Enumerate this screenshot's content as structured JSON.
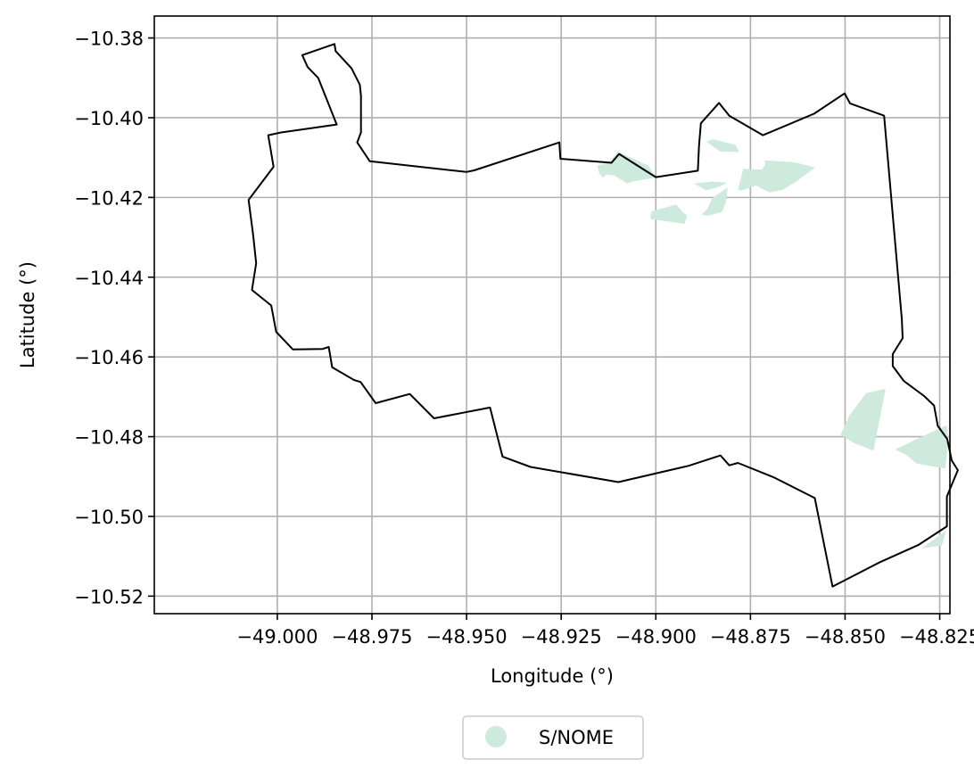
{
  "map": {
    "xlabel": "Longitude (°)",
    "ylabel": "Latitude (°)",
    "xlim": [
      -49.0325,
      -48.8223
    ],
    "ylim": [
      -10.5244,
      -10.3745
    ],
    "grid": true,
    "x_ticks": [
      {
        "value": -49.0,
        "label": "−49.000"
      },
      {
        "value": -48.975,
        "label": "−48.975"
      },
      {
        "value": -48.95,
        "label": "−48.950"
      },
      {
        "value": -48.925,
        "label": "−48.925"
      },
      {
        "value": -48.9,
        "label": "−48.900"
      },
      {
        "value": -48.875,
        "label": "−48.875"
      },
      {
        "value": -48.85,
        "label": "−48.850"
      },
      {
        "value": -48.825,
        "label": "−48.825"
      }
    ],
    "y_ticks": [
      {
        "value": -10.38,
        "label": "−10.38"
      },
      {
        "value": -10.4,
        "label": "−10.40"
      },
      {
        "value": -10.42,
        "label": "−10.42"
      },
      {
        "value": -10.44,
        "label": "−10.44"
      },
      {
        "value": -10.46,
        "label": "−10.46"
      },
      {
        "value": -10.48,
        "label": "−10.48"
      },
      {
        "value": -10.5,
        "label": "−10.50"
      },
      {
        "value": -10.52,
        "label": "−10.52"
      }
    ],
    "boundary": {
      "color": "#000000",
      "coords": [
        [
          -48.9849,
          -10.3815
        ],
        [
          -48.9846,
          -10.3833
        ],
        [
          -48.9804,
          -10.3876
        ],
        [
          -48.9782,
          -10.3917
        ],
        [
          -48.9779,
          -10.3945
        ],
        [
          -48.9779,
          -10.4037
        ],
        [
          -48.9789,
          -10.4062
        ],
        [
          -48.9756,
          -10.4109
        ],
        [
          -48.9501,
          -10.4136
        ],
        [
          -48.948,
          -10.4132
        ],
        [
          -48.9255,
          -10.4062
        ],
        [
          -48.9252,
          -10.4103
        ],
        [
          -48.9117,
          -10.4113
        ],
        [
          -48.9097,
          -10.4091
        ],
        [
          -48.9,
          -10.4149
        ],
        [
          -48.8889,
          -10.4133
        ],
        [
          -48.8886,
          -10.407
        ],
        [
          -48.8881,
          -10.4014
        ],
        [
          -48.8833,
          -10.3963
        ],
        [
          -48.8806,
          -10.3995
        ],
        [
          -48.8717,
          -10.4044
        ],
        [
          -48.8582,
          -10.399
        ],
        [
          -48.8501,
          -10.3939
        ],
        [
          -48.8487,
          -10.3964
        ],
        [
          -48.8397,
          -10.3995
        ],
        [
          -48.835,
          -10.4506
        ],
        [
          -48.8348,
          -10.4553
        ],
        [
          -48.8374,
          -10.4593
        ],
        [
          -48.8374,
          -10.4623
        ],
        [
          -48.8345,
          -10.466
        ],
        [
          -48.8291,
          -10.4698
        ],
        [
          -48.8265,
          -10.4722
        ],
        [
          -48.8255,
          -10.4773
        ],
        [
          -48.823,
          -10.4806
        ],
        [
          -48.8218,
          -10.486
        ],
        [
          -48.8202,
          -10.4884
        ],
        [
          -48.8231,
          -10.495
        ],
        [
          -48.8231,
          -10.5025
        ],
        [
          -48.8307,
          -10.5072
        ],
        [
          -48.8408,
          -10.5115
        ],
        [
          -48.8533,
          -10.5176
        ],
        [
          -48.858,
          -10.4954
        ],
        [
          -48.8686,
          -10.4903
        ],
        [
          -48.8783,
          -10.4866
        ],
        [
          -48.8806,
          -10.4872
        ],
        [
          -48.8829,
          -10.4847
        ],
        [
          -48.8913,
          -10.4873
        ],
        [
          -48.9099,
          -10.4914
        ],
        [
          -48.9331,
          -10.4876
        ],
        [
          -48.9405,
          -10.485
        ],
        [
          -48.9438,
          -10.4727
        ],
        [
          -48.9586,
          -10.4754
        ],
        [
          -48.965,
          -10.4693
        ],
        [
          -48.974,
          -10.4716
        ],
        [
          -48.978,
          -10.4663
        ],
        [
          -48.9797,
          -10.4658
        ],
        [
          -48.9855,
          -10.4626
        ],
        [
          -48.9864,
          -10.4575
        ],
        [
          -48.988,
          -10.458
        ],
        [
          -48.9959,
          -10.4581
        ],
        [
          -49.0003,
          -10.4537
        ],
        [
          -49.0016,
          -10.4471
        ],
        [
          -49.0067,
          -10.4432
        ],
        [
          -49.0056,
          -10.4365
        ],
        [
          -49.0064,
          -10.4294
        ],
        [
          -49.0076,
          -10.4206
        ],
        [
          -49.001,
          -10.4123
        ],
        [
          -49.0024,
          -10.4044
        ],
        [
          -48.999,
          -10.4037
        ],
        [
          -48.9843,
          -10.4017
        ],
        [
          -48.9892,
          -10.39
        ],
        [
          -48.992,
          -10.3873
        ],
        [
          -48.9934,
          -10.3843
        ]
      ]
    },
    "layers": [
      {
        "name": "S/NOME",
        "color": "#cdeadd",
        "polygons": [
          [
            [
              -48.9125,
              -10.4113
            ],
            [
              -48.91,
              -10.4085
            ],
            [
              -48.902,
              -10.412
            ],
            [
              -48.9,
              -10.415
            ],
            [
              -48.906,
              -10.416
            ],
            [
              -48.9075,
              -10.4165
            ],
            [
              -48.911,
              -10.4145
            ],
            [
              -48.913,
              -10.4143
            ],
            [
              -48.914,
              -10.415
            ],
            [
              -48.9149,
              -10.414
            ],
            [
              -48.9155,
              -10.412
            ]
          ],
          [
            [
              -48.8866,
              -10.406
            ],
            [
              -48.885,
              -10.4054
            ],
            [
              -48.879,
              -10.4068
            ],
            [
              -48.878,
              -10.4086
            ],
            [
              -48.883,
              -10.4085
            ]
          ],
          [
            [
              -48.8713,
              -10.4107
            ],
            [
              -48.8633,
              -10.4112
            ],
            [
              -48.8579,
              -10.4125
            ],
            [
              -48.8629,
              -10.416
            ],
            [
              -48.8665,
              -10.4181
            ],
            [
              -48.87,
              -10.4187
            ],
            [
              -48.8716,
              -10.418
            ],
            [
              -48.8735,
              -10.417
            ],
            [
              -48.8775,
              -10.4183
            ],
            [
              -48.8783,
              -10.418
            ],
            [
              -48.8769,
              -10.4128
            ],
            [
              -48.872,
              -10.413
            ],
            [
              -48.871,
              -10.4117
            ]
          ],
          [
            [
              -48.8899,
              -10.4165
            ],
            [
              -48.885,
              -10.416
            ],
            [
              -48.881,
              -10.4163
            ],
            [
              -48.8838,
              -10.4175
            ],
            [
              -48.8867,
              -10.4182
            ]
          ],
          [
            [
              -48.881,
              -10.4175
            ],
            [
              -48.8815,
              -10.4212
            ],
            [
              -48.8825,
              -10.4236
            ],
            [
              -48.8862,
              -10.4246
            ],
            [
              -48.888,
              -10.4243
            ],
            [
              -48.8863,
              -10.4228
            ],
            [
              -48.8852,
              -10.4202
            ]
          ],
          [
            [
              -48.9012,
              -10.4235
            ],
            [
              -48.8946,
              -10.4218
            ],
            [
              -48.893,
              -10.4236
            ],
            [
              -48.8917,
              -10.4245
            ],
            [
              -48.8924,
              -10.4266
            ],
            [
              -48.9015,
              -10.4254
            ]
          ],
          [
            [
              -48.8393,
              -10.468
            ],
            [
              -48.8444,
              -10.4691
            ],
            [
              -48.8488,
              -10.4746
            ],
            [
              -48.8512,
              -10.4795
            ],
            [
              -48.8479,
              -10.4815
            ],
            [
              -48.8425,
              -10.4835
            ]
          ],
          [
            [
              -48.8368,
              -10.4832
            ],
            [
              -48.8268,
              -10.4787
            ],
            [
              -48.8232,
              -10.4772
            ],
            [
              -48.8227,
              -10.481
            ],
            [
              -48.8235,
              -10.488
            ],
            [
              -48.831,
              -10.4868
            ],
            [
              -48.834,
              -10.4845
            ]
          ],
          [
            [
              -48.8233,
              -10.5035
            ],
            [
              -48.8244,
              -10.5073
            ],
            [
              -48.8298,
              -10.508
            ]
          ]
        ]
      }
    ],
    "legend": {
      "position": "below",
      "entries": [
        {
          "label": "S/NOME",
          "color": "#cdeadd",
          "marker": "circle"
        }
      ]
    }
  }
}
